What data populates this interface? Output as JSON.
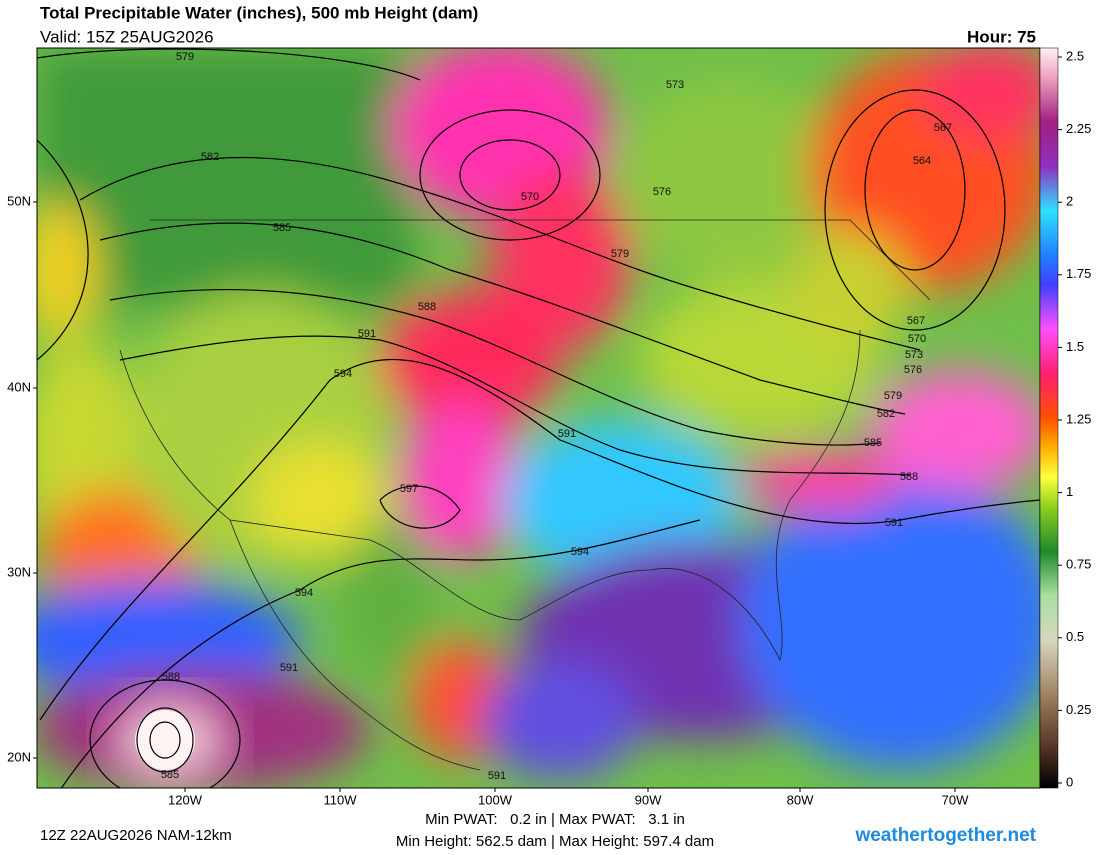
{
  "header": {
    "title": "Total Precipitable Water (inches), 500 mb Height (dam)",
    "valid": "Valid: 15Z 25AUG2026",
    "hour": "Hour: 75"
  },
  "colorbar": {
    "ticks": [
      0,
      0.25,
      0.5,
      0.75,
      1,
      1.25,
      1.5,
      1.75,
      2,
      2.25,
      2.5
    ]
  },
  "lat_labels": [
    "50N",
    "40N",
    "30N",
    "20N"
  ],
  "lon_labels": [
    "120W",
    "110W",
    "100W",
    "90W",
    "80W",
    "70W"
  ],
  "contour_labels": [
    579,
    582,
    585,
    588,
    591,
    594,
    597,
    573,
    576,
    570,
    579,
    567,
    564,
    567,
    570,
    573,
    576,
    579,
    582,
    585,
    588,
    591,
    591,
    594,
    594,
    591,
    588,
    585,
    591
  ],
  "footer": {
    "run": "12Z 22AUG2026 NAM-12km",
    "pwat": "Min PWAT:   0.2 in | Max PWAT:   3.1 in",
    "height": "Min Height: 562.5 dam | Max Height: 597.4 dam",
    "site": "weathertogether.net"
  }
}
